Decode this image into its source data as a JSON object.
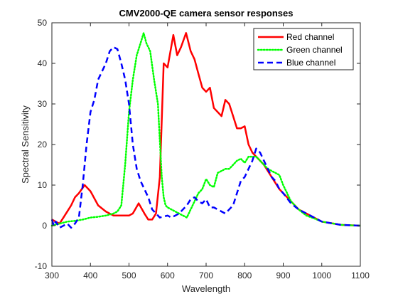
{
  "chart_data": {
    "type": "line",
    "title": "CMV2000-QE camera sensor responses",
    "xlabel": "Wavelength",
    "ylabel": "Spectral Sensitivity",
    "xlim": [
      300,
      1100
    ],
    "ylim": [
      -10,
      50
    ],
    "x_ticks": [
      300,
      400,
      500,
      600,
      700,
      800,
      900,
      1000,
      1100
    ],
    "y_ticks": [
      -10,
      0,
      10,
      20,
      30,
      40,
      50
    ],
    "grid": false,
    "legend_position": "top-right",
    "series": [
      {
        "name": "Red channel",
        "color": "#ff0000",
        "style": "solid",
        "points": [
          [
            300,
            1.5
          ],
          [
            310,
            1
          ],
          [
            320,
            0.5
          ],
          [
            330,
            2
          ],
          [
            340,
            3.5
          ],
          [
            350,
            5
          ],
          [
            360,
            7
          ],
          [
            370,
            8
          ],
          [
            385,
            10
          ],
          [
            400,
            8.5
          ],
          [
            420,
            5
          ],
          [
            440,
            3.5
          ],
          [
            460,
            2.5
          ],
          [
            480,
            2.5
          ],
          [
            500,
            2.5
          ],
          [
            510,
            3
          ],
          [
            525,
            5.5
          ],
          [
            540,
            3
          ],
          [
            550,
            1.5
          ],
          [
            560,
            1.5
          ],
          [
            570,
            3
          ],
          [
            580,
            12
          ],
          [
            590,
            40
          ],
          [
            600,
            39
          ],
          [
            615,
            47
          ],
          [
            625,
            42
          ],
          [
            635,
            44
          ],
          [
            648,
            47.5
          ],
          [
            660,
            43
          ],
          [
            670,
            41
          ],
          [
            680,
            37.5
          ],
          [
            690,
            34
          ],
          [
            700,
            33
          ],
          [
            710,
            34
          ],
          [
            720,
            29
          ],
          [
            730,
            28
          ],
          [
            740,
            27
          ],
          [
            750,
            31
          ],
          [
            760,
            30
          ],
          [
            770,
            27
          ],
          [
            780,
            24
          ],
          [
            790,
            24
          ],
          [
            800,
            24.5
          ],
          [
            810,
            20
          ],
          [
            820,
            18
          ],
          [
            830,
            17
          ],
          [
            840,
            16
          ],
          [
            850,
            15
          ],
          [
            860,
            13.5
          ],
          [
            870,
            12
          ],
          [
            880,
            10.5
          ],
          [
            890,
            9
          ],
          [
            900,
            8
          ],
          [
            920,
            6
          ],
          [
            940,
            4
          ],
          [
            960,
            3
          ],
          [
            980,
            2
          ],
          [
            1000,
            1
          ],
          [
            1050,
            0.2
          ],
          [
            1100,
            0
          ]
        ]
      },
      {
        "name": "Green channel",
        "color": "#00ff00",
        "style": "dotted",
        "points": [
          [
            300,
            0
          ],
          [
            320,
            0.5
          ],
          [
            340,
            1
          ],
          [
            360,
            1.2
          ],
          [
            380,
            1.5
          ],
          [
            400,
            2
          ],
          [
            420,
            2.2
          ],
          [
            440,
            2.5
          ],
          [
            460,
            3
          ],
          [
            470,
            3.5
          ],
          [
            480,
            5
          ],
          [
            490,
            15
          ],
          [
            500,
            28
          ],
          [
            510,
            36
          ],
          [
            520,
            42
          ],
          [
            530,
            45
          ],
          [
            538,
            47.5
          ],
          [
            545,
            45
          ],
          [
            555,
            43
          ],
          [
            565,
            36
          ],
          [
            575,
            30
          ],
          [
            585,
            12
          ],
          [
            590,
            7
          ],
          [
            595,
            5
          ],
          [
            600,
            4.5
          ],
          [
            620,
            3.5
          ],
          [
            640,
            2.5
          ],
          [
            650,
            2
          ],
          [
            660,
            4
          ],
          [
            670,
            6
          ],
          [
            680,
            8
          ],
          [
            690,
            9
          ],
          [
            700,
            11.5
          ],
          [
            710,
            10
          ],
          [
            720,
            9.5
          ],
          [
            730,
            13
          ],
          [
            740,
            13.5
          ],
          [
            750,
            14
          ],
          [
            760,
            14
          ],
          [
            770,
            15
          ],
          [
            780,
            16
          ],
          [
            790,
            16.5
          ],
          [
            800,
            15.5
          ],
          [
            810,
            17
          ],
          [
            820,
            17
          ],
          [
            830,
            17
          ],
          [
            840,
            16
          ],
          [
            850,
            15
          ],
          [
            860,
            14
          ],
          [
            870,
            13.5
          ],
          [
            880,
            13
          ],
          [
            890,
            12.5
          ],
          [
            900,
            10
          ],
          [
            920,
            6
          ],
          [
            940,
            4
          ],
          [
            960,
            2.5
          ],
          [
            980,
            1.8
          ],
          [
            1000,
            1
          ],
          [
            1050,
            0.2
          ],
          [
            1100,
            0
          ]
        ]
      },
      {
        "name": "Blue channel",
        "color": "#0000ff",
        "style": "dashed",
        "points": [
          [
            300,
            1.5
          ],
          [
            305,
            0
          ],
          [
            310,
            1
          ],
          [
            320,
            -0.5
          ],
          [
            330,
            0
          ],
          [
            340,
            0.5
          ],
          [
            350,
            -0.5
          ],
          [
            360,
            0.5
          ],
          [
            370,
            2
          ],
          [
            380,
            10
          ],
          [
            390,
            20
          ],
          [
            400,
            28
          ],
          [
            410,
            31
          ],
          [
            420,
            36
          ],
          [
            430,
            38
          ],
          [
            440,
            40
          ],
          [
            450,
            43
          ],
          [
            460,
            44
          ],
          [
            470,
            43.5
          ],
          [
            480,
            40
          ],
          [
            490,
            36
          ],
          [
            500,
            30
          ],
          [
            510,
            20
          ],
          [
            520,
            14
          ],
          [
            530,
            11
          ],
          [
            540,
            9
          ],
          [
            550,
            7
          ],
          [
            560,
            4
          ],
          [
            570,
            3
          ],
          [
            580,
            2
          ],
          [
            600,
            2.5
          ],
          [
            610,
            2
          ],
          [
            620,
            2.5
          ],
          [
            630,
            3
          ],
          [
            640,
            4
          ],
          [
            650,
            5
          ],
          [
            660,
            6.5
          ],
          [
            670,
            7
          ],
          [
            680,
            6
          ],
          [
            690,
            5.5
          ],
          [
            700,
            6.5
          ],
          [
            710,
            4.5
          ],
          [
            720,
            4.5
          ],
          [
            730,
            4
          ],
          [
            740,
            3.5
          ],
          [
            750,
            3
          ],
          [
            760,
            4
          ],
          [
            770,
            5
          ],
          [
            780,
            8
          ],
          [
            790,
            11
          ],
          [
            800,
            12
          ],
          [
            810,
            14
          ],
          [
            820,
            16
          ],
          [
            830,
            19
          ],
          [
            840,
            18
          ],
          [
            850,
            16
          ],
          [
            860,
            14
          ],
          [
            870,
            12
          ],
          [
            880,
            11
          ],
          [
            890,
            9
          ],
          [
            900,
            8
          ],
          [
            920,
            5.5
          ],
          [
            940,
            4
          ],
          [
            960,
            3
          ],
          [
            980,
            2
          ],
          [
            1000,
            1
          ],
          [
            1050,
            0.2
          ],
          [
            1100,
            0
          ]
        ]
      }
    ]
  }
}
